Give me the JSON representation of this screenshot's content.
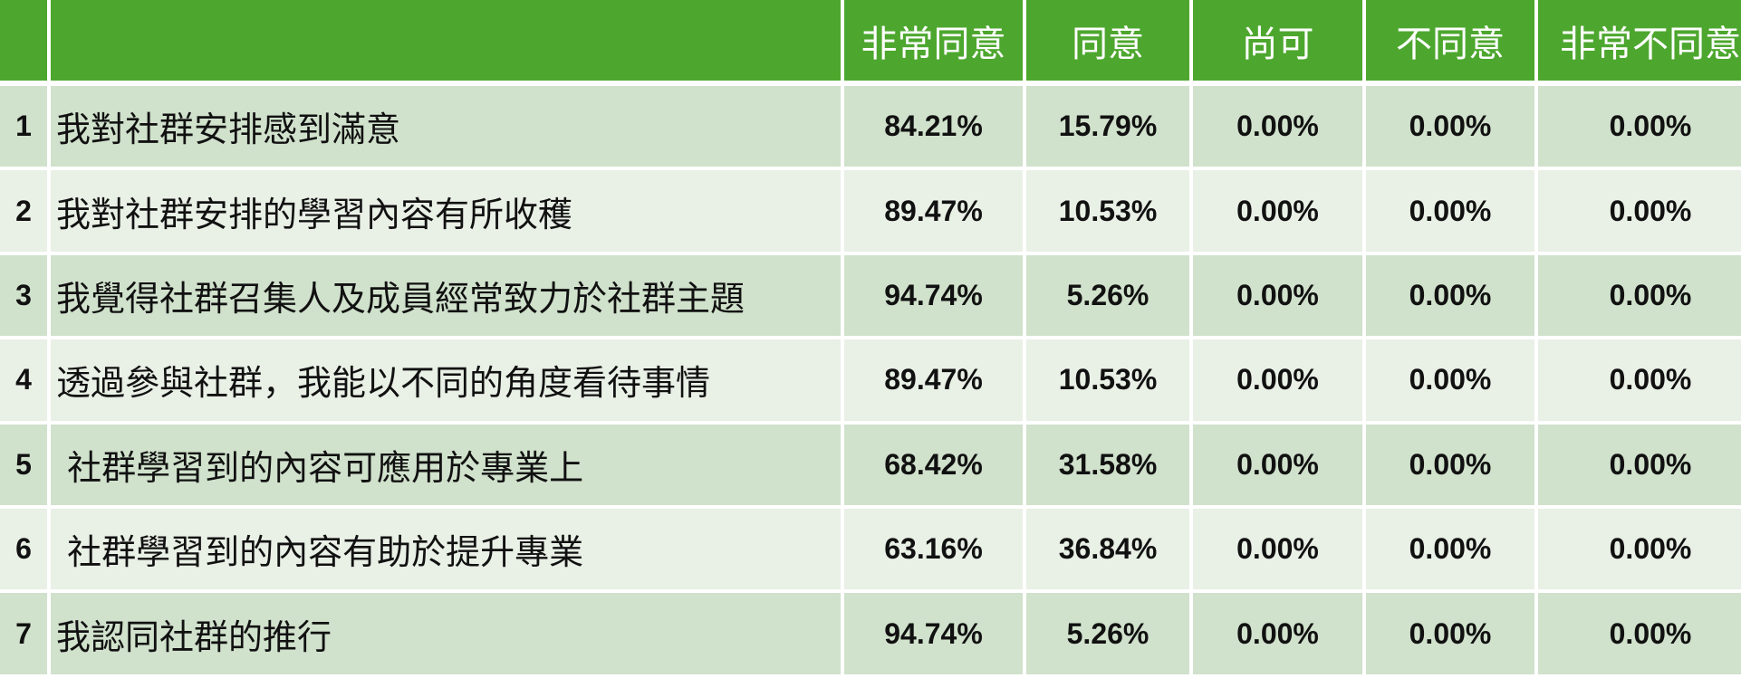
{
  "chart_data": {
    "type": "table",
    "columns": [
      "非常同意",
      "同意",
      "尚可",
      "不同意",
      "非常不同意"
    ],
    "rows": [
      {
        "no": "1",
        "statement": "我對社群安排感到滿意",
        "values": [
          "84.21%",
          "15.79%",
          "0.00%",
          "0.00%",
          "0.00%"
        ]
      },
      {
        "no": "2",
        "statement": "我對社群安排的學習內容有所收穫",
        "values": [
          "89.47%",
          "10.53%",
          "0.00%",
          "0.00%",
          "0.00%"
        ]
      },
      {
        "no": "3",
        "statement": "我覺得社群召集人及成員經常致力於社群主題",
        "values": [
          "94.74%",
          "5.26%",
          "0.00%",
          "0.00%",
          "0.00%"
        ]
      },
      {
        "no": "4",
        "statement": "透過參與社群，我能以不同的角度看待事情",
        "values": [
          "89.47%",
          "10.53%",
          "0.00%",
          "0.00%",
          "0.00%"
        ]
      },
      {
        "no": "5",
        "statement": " 社群學習到的內容可應用於專業上",
        "values": [
          "68.42%",
          "31.58%",
          "0.00%",
          "0.00%",
          "0.00%"
        ]
      },
      {
        "no": "6",
        "statement": " 社群學習到的內容有助於提升專業",
        "values": [
          "63.16%",
          "36.84%",
          "0.00%",
          "0.00%",
          "0.00%"
        ]
      },
      {
        "no": "7",
        "statement": "我認同社群的推行",
        "values": [
          "94.74%",
          "5.26%",
          "0.00%",
          "0.00%",
          "0.00%"
        ]
      }
    ]
  },
  "colors": {
    "header_bg": "#4da72e",
    "row_odd_bg": "#d0e1cc",
    "row_even_bg": "#e9f0e6",
    "separator": "#ffffff"
  }
}
